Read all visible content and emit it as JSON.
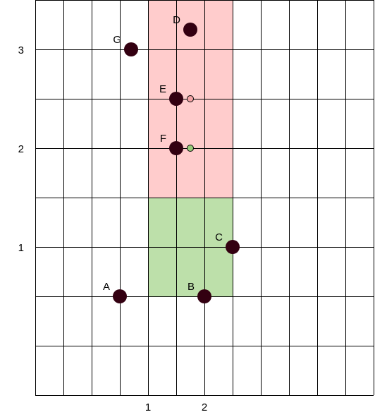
{
  "chart_data": {
    "type": "scatter",
    "title": "",
    "xlabel": "",
    "ylabel": "",
    "xlim": [
      -1,
      5
    ],
    "ylim": [
      -0.5,
      3.5
    ],
    "grid": true,
    "colors": {
      "background": "#ffffff",
      "grid": "#000000",
      "point_fill": "#330011",
      "red_region": "#ffcccc",
      "green_region": "#bde0aa",
      "small_red_point": "#f4a4a6",
      "small_green_point": "#98cc7a"
    },
    "x_ticks": [
      {
        "value": 1,
        "label": "1"
      },
      {
        "value": 2,
        "label": "2"
      }
    ],
    "y_ticks": [
      {
        "value": 1,
        "label": "1"
      },
      {
        "value": 2,
        "label": "2"
      },
      {
        "value": 3,
        "label": "3"
      }
    ],
    "regions": [
      {
        "name": "red-region",
        "color": "#ffcccc",
        "x": [
          1,
          2.5
        ],
        "y": [
          1.5,
          3.5
        ]
      },
      {
        "name": "green-region",
        "color": "#bde0aa",
        "x": [
          1,
          2.5
        ],
        "y": [
          0.5,
          1.5
        ]
      }
    ],
    "points": [
      {
        "label": "A",
        "x": 0.5,
        "y": 0.5
      },
      {
        "label": "B",
        "x": 2.0,
        "y": 0.5
      },
      {
        "label": "C",
        "x": 2.5,
        "y": 1.0
      },
      {
        "label": "D",
        "x": 1.75,
        "y": 3.2
      },
      {
        "label": "E",
        "x": 1.5,
        "y": 2.5
      },
      {
        "label": "F",
        "x": 1.5,
        "y": 2.0
      },
      {
        "label": "G",
        "x": 0.7,
        "y": 3.0
      }
    ],
    "small_points": [
      {
        "x": 1.75,
        "y": 2.5,
        "color": "#f4a4a6"
      },
      {
        "x": 1.75,
        "y": 2.0,
        "color": "#98cc7a"
      }
    ]
  }
}
